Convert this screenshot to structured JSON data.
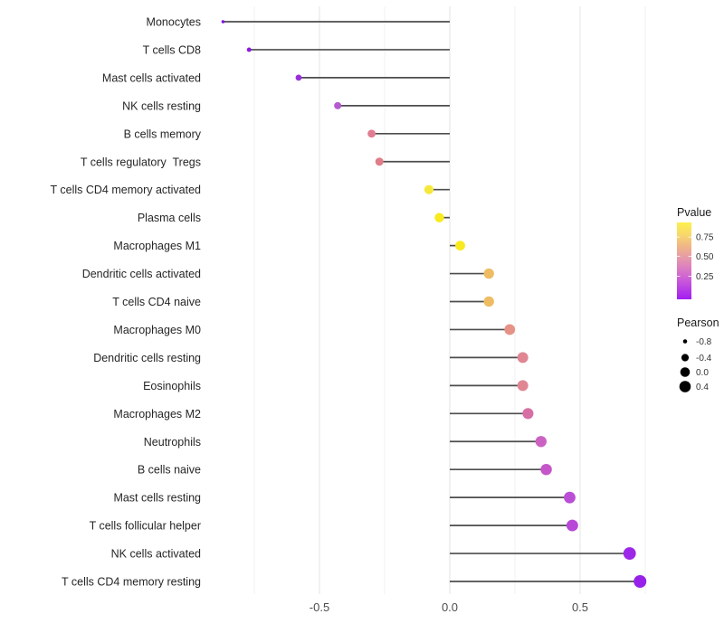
{
  "chart_data": {
    "type": "lollipop",
    "orientation": "horizontal",
    "title": "",
    "xlabel": "",
    "ylabel": "",
    "x_axis": {
      "tick_labels": [
        "-0.5",
        "0.0",
        "0.5"
      ],
      "tick_values": [
        -0.5,
        0.0,
        0.5
      ],
      "minor_tick_values": [
        -0.75,
        -0.25,
        0.25,
        0.75
      ],
      "range": [
        -0.95,
        0.81
      ],
      "grid": "vertical-major-and-minor"
    },
    "points": [
      {
        "label": "Monocytes",
        "pearson": -0.87,
        "color": "#7f12e3"
      },
      {
        "label": "T cells CD8",
        "pearson": -0.77,
        "color": "#8b1ae3"
      },
      {
        "label": "Mast cells activated",
        "pearson": -0.58,
        "color": "#9c2eda"
      },
      {
        "label": "NK cells resting",
        "pearson": -0.43,
        "color": "#b55ad0"
      },
      {
        "label": "B cells memory",
        "pearson": -0.3,
        "color": "#e17d92"
      },
      {
        "label": "T cells regulatory  Tregs",
        "pearson": -0.27,
        "color": "#de7e89"
      },
      {
        "label": "T cells CD4 memory activated",
        "pearson": -0.08,
        "color": "#f6e83a"
      },
      {
        "label": "Plasma cells",
        "pearson": -0.04,
        "color": "#f8ea1d"
      },
      {
        "label": "Macrophages M1",
        "pearson": 0.04,
        "color": "#f8ea1d"
      },
      {
        "label": "Dendritic cells activated",
        "pearson": 0.15,
        "color": "#eebc63"
      },
      {
        "label": "T cells CD4 naive",
        "pearson": 0.15,
        "color": "#eebc63"
      },
      {
        "label": "Macrophages M0",
        "pearson": 0.23,
        "color": "#e69286"
      },
      {
        "label": "Dendritic cells resting",
        "pearson": 0.28,
        "color": "#e08693"
      },
      {
        "label": "Eosinophils",
        "pearson": 0.28,
        "color": "#e08693"
      },
      {
        "label": "Macrophages M2",
        "pearson": 0.3,
        "color": "#d76fa5"
      },
      {
        "label": "Neutrophils",
        "pearson": 0.35,
        "color": "#cb62c2"
      },
      {
        "label": "B cells naive",
        "pearson": 0.37,
        "color": "#c456c9"
      },
      {
        "label": "Mast cells resting",
        "pearson": 0.46,
        "color": "#bb4ed6"
      },
      {
        "label": "T cells follicular helper",
        "pearson": 0.47,
        "color": "#b848d8"
      },
      {
        "label": "NK cells activated",
        "pearson": 0.69,
        "color": "#9d27e8"
      },
      {
        "label": "T cells CD4 memory resting",
        "pearson": 0.73,
        "color": "#9821e9"
      }
    ],
    "size_domain": [
      -0.87,
      0.73
    ],
    "legend_position": "right",
    "legends": {
      "pvalue": {
        "title": "Pvalue",
        "tick_labels": [
          "0.75",
          "0.50",
          "0.25"
        ],
        "tick_fractions_from_top": [
          0.19,
          0.44,
          0.7
        ],
        "gradient_top_to_bottom": [
          {
            "offset": 0.0,
            "color": "#fdf04e"
          },
          {
            "offset": 0.15,
            "color": "#f8d96a"
          },
          {
            "offset": 0.32,
            "color": "#efb489"
          },
          {
            "offset": 0.48,
            "color": "#e595ad"
          },
          {
            "offset": 0.62,
            "color": "#d978c6"
          },
          {
            "offset": 0.78,
            "color": "#c653dc"
          },
          {
            "offset": 1.0,
            "color": "#a11ef2"
          }
        ]
      },
      "pearson": {
        "title": "Pearson",
        "items": [
          {
            "label": "-0.8",
            "value": -0.8
          },
          {
            "label": "-0.4",
            "value": -0.4
          },
          {
            "label": "0.0",
            "value": 0.0
          },
          {
            "label": "0.4",
            "value": 0.4
          }
        ],
        "dot_color": "#000000"
      }
    },
    "colors": {
      "stem": "#4d4d4d",
      "grid_major": "#e3e3e3",
      "grid_minor": "#f0f0f0",
      "axis_tick_text": "#4d4d4d",
      "category_text": "#262626",
      "legend_title_text": "#1a1a1a",
      "legend_label_text": "#333333",
      "background": "#ffffff"
    }
  }
}
